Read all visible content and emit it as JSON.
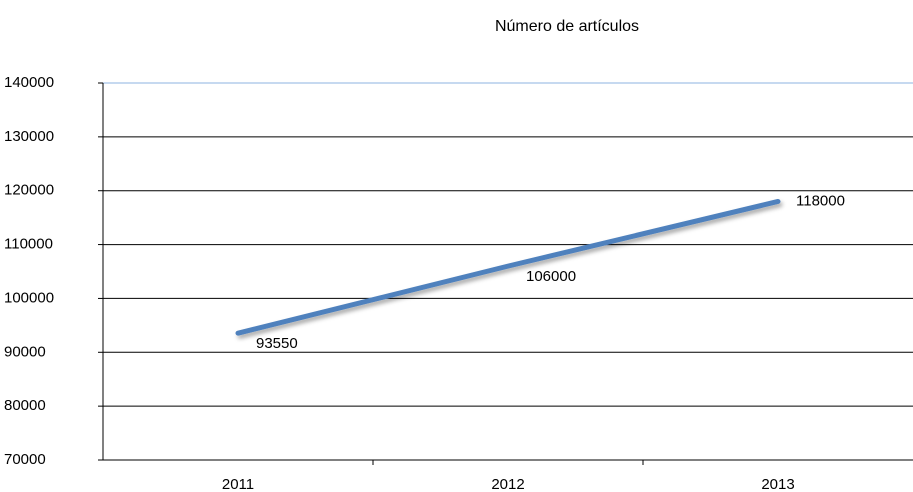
{
  "chart_data": {
    "type": "line",
    "title": "Número de artículos",
    "categories": [
      "2011",
      "2012",
      "2013"
    ],
    "series": [
      {
        "name": null,
        "color": "#4f81bd",
        "values": [
          93550,
          106000,
          118000
        ]
      }
    ],
    "ylim": [
      70000,
      140000
    ],
    "yticks": [
      70000,
      80000,
      90000,
      100000,
      110000,
      120000,
      130000,
      140000
    ],
    "grid": true
  }
}
